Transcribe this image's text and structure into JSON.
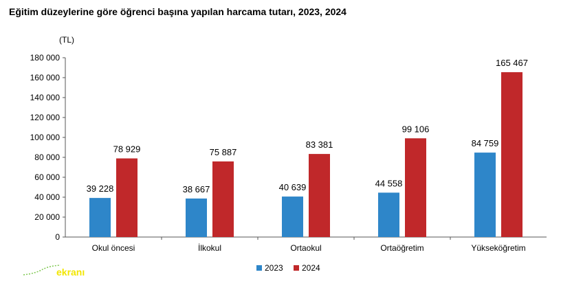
{
  "title": "Eğitim düzeylerine göre öğrenci başına yapılan harcama tutarı, 2023, 2024",
  "logo": {
    "text": "ekranı",
    "color": "#f2e600"
  },
  "chart_data": {
    "type": "bar",
    "unit_label": "(TL)",
    "categories": [
      "Okul öncesi",
      "İlkokul",
      "Ortaokul",
      "Ortaöğretim",
      "Yükseköğretim"
    ],
    "series": [
      {
        "name": "2023",
        "color": "#2e86c9",
        "values": [
          39228,
          38667,
          40639,
          44558,
          84759
        ],
        "labels": [
          "39 228",
          "38 667",
          "40 639",
          "44 558",
          "84 759"
        ]
      },
      {
        "name": "2024",
        "color": "#c0282a",
        "values": [
          78929,
          75887,
          83381,
          99106,
          165467
        ],
        "labels": [
          "78 929",
          "75 887",
          "83 381",
          "99 106",
          "165 467"
        ]
      }
    ],
    "ylim": [
      0,
      180000
    ],
    "yticks": [
      0,
      20000,
      40000,
      60000,
      80000,
      100000,
      120000,
      140000,
      160000,
      180000
    ],
    "ytick_labels": [
      "0",
      "20 000",
      "40 000",
      "60 000",
      "80 000",
      "100 000",
      "120 000",
      "140 000",
      "160 000",
      "180 000"
    ],
    "grid": false,
    "legend": "bottom-center"
  }
}
